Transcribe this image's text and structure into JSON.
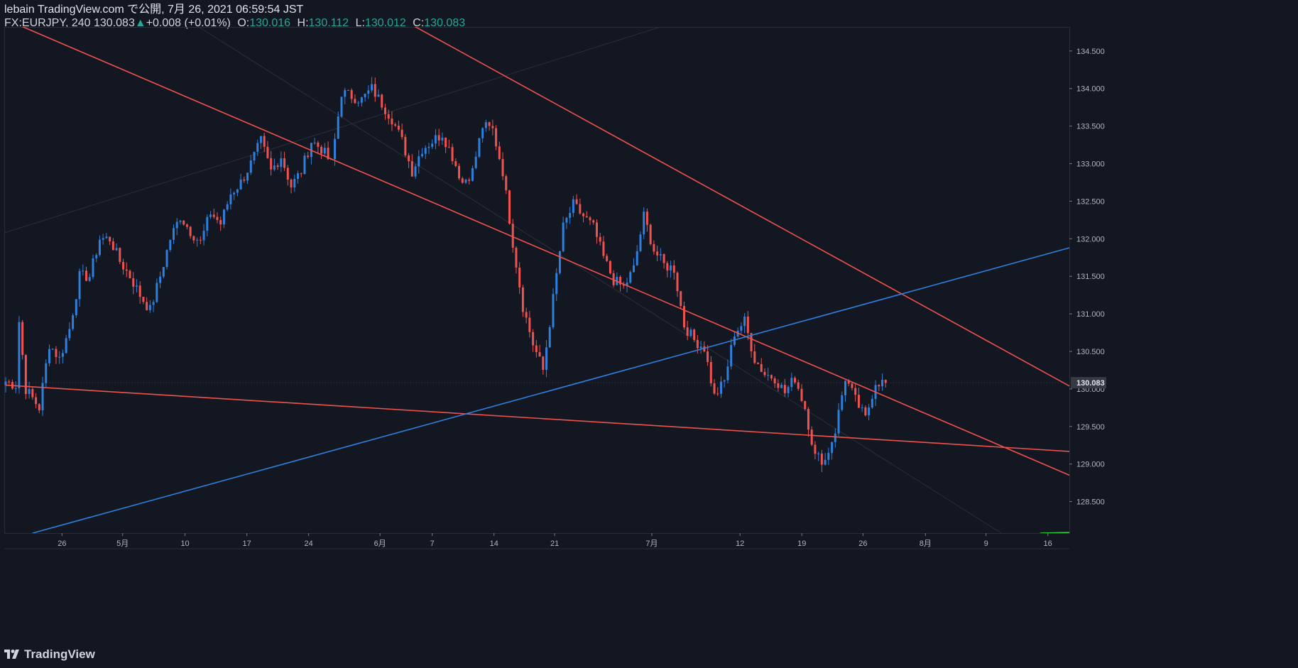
{
  "header": {
    "published": "lebain TradingView.com で公開, 7月 26, 2021 06:59:54 JST",
    "symbol": "FX:EURJPY, 240",
    "last": "130.083",
    "change_arrow": "▲",
    "change": "+0.008 (+0.01%)",
    "o_label": "O:",
    "o_value": "130.016",
    "h_label": "H:",
    "h_value": "130.112",
    "l_label": "L:",
    "l_value": "130.012",
    "c_label": "C:",
    "c_value": "130.083"
  },
  "footer": {
    "brand": "TradingView"
  },
  "colors": {
    "background": "#131722",
    "bull": "#2f7fdc",
    "bear": "#ef5350",
    "trend_red": "#f0514b",
    "trend_blue": "#2f7fdc",
    "green_line": "#32cd32",
    "axis_text": "#b2b5be"
  },
  "chart_data": {
    "type": "candlestick",
    "symbol": "FX:EURJPY",
    "timeframe": "240",
    "y_ticks": [
      128.5,
      129.0,
      129.5,
      130.0,
      130.5,
      131.0,
      131.5,
      132.0,
      132.5,
      133.0,
      133.5,
      134.0,
      134.5
    ],
    "y_tick_labels": [
      "128.500",
      "129.000",
      "129.500",
      "130.000",
      "130.500",
      "131.000",
      "131.500",
      "132.000",
      "132.500",
      "133.000",
      "133.500",
      "134.000",
      "134.500"
    ],
    "ylim": [
      128.08,
      134.82
    ],
    "x_tick_labels": [
      "26",
      "5月",
      "10",
      "17",
      "24",
      "6月",
      "7",
      "14",
      "21",
      "7月",
      "12",
      "19",
      "26",
      "8月",
      "9",
      "16"
    ],
    "last_price_label": "130.083",
    "price_path": [
      [
        0,
        130.1
      ],
      [
        3,
        130.05
      ],
      [
        4,
        130.9
      ],
      [
        6,
        130.0
      ],
      [
        10,
        129.75
      ],
      [
        13,
        130.6
      ],
      [
        16,
        130.4
      ],
      [
        19,
        130.8
      ],
      [
        22,
        131.5
      ],
      [
        25,
        131.5
      ],
      [
        28,
        132.0
      ],
      [
        31,
        132.0
      ],
      [
        34,
        131.7
      ],
      [
        37,
        131.5
      ],
      [
        40,
        131.25
      ],
      [
        43,
        131.05
      ],
      [
        46,
        131.5
      ],
      [
        49,
        132.0
      ],
      [
        52,
        132.3
      ],
      [
        55,
        132.1
      ],
      [
        58,
        131.95
      ],
      [
        61,
        132.35
      ],
      [
        64,
        132.2
      ],
      [
        67,
        132.6
      ],
      [
        70,
        132.75
      ],
      [
        73,
        133.0
      ],
      [
        76,
        133.3
      ],
      [
        79,
        132.9
      ],
      [
        82,
        133.1
      ],
      [
        85,
        132.7
      ],
      [
        88,
        132.9
      ],
      [
        91,
        133.3
      ],
      [
        94,
        133.2
      ],
      [
        97,
        133.0
      ],
      [
        100,
        133.95
      ],
      [
        103,
        133.9
      ],
      [
        106,
        133.85
      ],
      [
        109,
        134.0
      ],
      [
        112,
        133.8
      ],
      [
        115,
        133.6
      ],
      [
        118,
        133.3
      ],
      [
        121,
        132.9
      ],
      [
        124,
        133.2
      ],
      [
        127,
        133.3
      ],
      [
        130,
        133.4
      ],
      [
        133,
        133.1
      ],
      [
        136,
        132.75
      ],
      [
        139,
        132.9
      ],
      [
        142,
        133.5
      ],
      [
        145,
        133.45
      ],
      [
        148,
        132.9
      ],
      [
        151,
        131.95
      ],
      [
        154,
        131.1
      ],
      [
        157,
        130.6
      ],
      [
        160,
        130.25
      ],
      [
        163,
        131.2
      ],
      [
        166,
        132.15
      ],
      [
        169,
        132.45
      ],
      [
        172,
        132.3
      ],
      [
        175,
        132.15
      ],
      [
        178,
        131.75
      ],
      [
        181,
        131.45
      ],
      [
        184,
        131.35
      ],
      [
        187,
        131.6
      ],
      [
        190,
        132.3
      ],
      [
        193,
        131.85
      ],
      [
        196,
        131.65
      ],
      [
        199,
        131.6
      ],
      [
        202,
        130.85
      ],
      [
        205,
        130.65
      ],
      [
        208,
        130.55
      ],
      [
        211,
        129.9
      ],
      [
        214,
        130.1
      ],
      [
        217,
        130.75
      ],
      [
        220,
        130.9
      ],
      [
        223,
        130.4
      ],
      [
        226,
        130.2
      ],
      [
        229,
        130.15
      ],
      [
        232,
        129.95
      ],
      [
        235,
        130.15
      ],
      [
        238,
        129.75
      ],
      [
        241,
        129.1
      ],
      [
        244,
        129.05
      ],
      [
        247,
        129.45
      ],
      [
        250,
        130.15
      ],
      [
        253,
        129.85
      ],
      [
        256,
        129.6
      ],
      [
        259,
        130.1
      ],
      [
        262,
        130.08
      ]
    ],
    "trend_lines": [
      {
        "color": "red",
        "from": [
          0,
          134.92
        ],
        "to": [
          357,
          128.08
        ]
      },
      {
        "color": "red",
        "from": [
          118,
          134.92
        ],
        "to": [
          359,
          129.0
        ]
      },
      {
        "color": "red",
        "from": [
          0,
          130.05
        ],
        "to": [
          359,
          129.05
        ]
      },
      {
        "color": "blue",
        "from": [
          8,
          128.08
        ],
        "to": [
          359,
          132.4
        ]
      },
      {
        "color": "green",
        "from": [
          308,
          128.08
        ],
        "to": [
          359,
          128.13
        ]
      }
    ],
    "grid": false,
    "legend": "none"
  }
}
